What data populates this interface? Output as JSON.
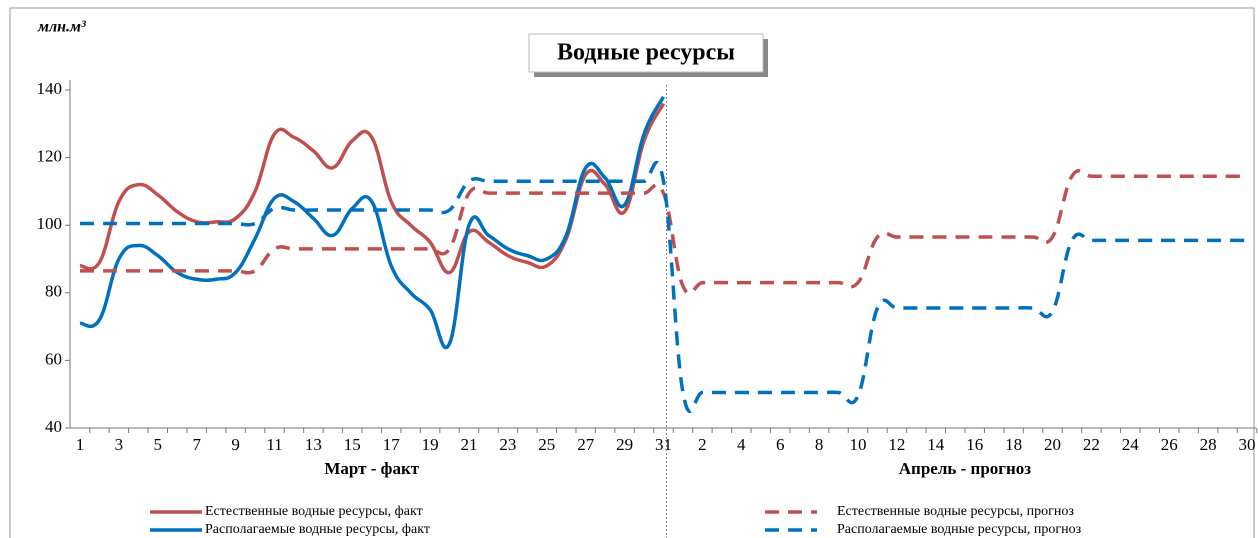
{
  "chart_data": {
    "type": "line",
    "title": "Водные ресурсы",
    "y_label": "млн.м³",
    "group_labels": [
      "Март - факт",
      "Апрель - прогноз"
    ],
    "categories": [
      "1",
      null,
      "3",
      null,
      "5",
      null,
      "7",
      null,
      "9",
      null,
      "11",
      null,
      "13",
      null,
      "15",
      null,
      "17",
      null,
      "19",
      null,
      "21",
      null,
      "23",
      null,
      "25",
      null,
      "27",
      null,
      "29",
      null,
      "31",
      null,
      "2",
      null,
      "4",
      null,
      "6",
      null,
      "8",
      null,
      "10",
      null,
      "12",
      null,
      "14",
      null,
      "16",
      null,
      "18",
      null,
      "20",
      null,
      "22",
      null,
      "24",
      null,
      "26",
      null,
      "28",
      null,
      "30"
    ],
    "series": [
      {
        "name": "Естественные водные ресурсы, факт",
        "color": "#c0504d",
        "dashed": false,
        "values": [
          88,
          89,
          107,
          112,
          109,
          104,
          101,
          101,
          102,
          110,
          127,
          126,
          122,
          117,
          125,
          126,
          107,
          100,
          95,
          86,
          98,
          95,
          91,
          89,
          88,
          96,
          115,
          112,
          104,
          125,
          136,
          null,
          null,
          null,
          null,
          null,
          null,
          null,
          null,
          null,
          null,
          null,
          null,
          null,
          null,
          null,
          null,
          null,
          null,
          null,
          null,
          null,
          null,
          null,
          null,
          null,
          null,
          null,
          null,
          null,
          null
        ]
      },
      {
        "name": "Располагаемые водные ресурсы, факт",
        "color": "#0070c0",
        "dashed": false,
        "values": [
          71,
          72,
          90,
          94,
          91,
          86,
          84,
          84,
          86,
          96,
          108,
          107,
          102,
          97,
          105,
          107,
          88,
          80,
          75,
          65,
          100,
          97,
          93,
          91,
          90,
          97,
          117,
          114,
          106,
          127,
          138,
          null,
          null,
          null,
          null,
          null,
          null,
          null,
          null,
          null,
          null,
          null,
          null,
          null,
          null,
          null,
          null,
          null,
          null,
          null,
          null,
          null,
          null,
          null,
          null,
          null,
          null,
          null,
          null,
          null,
          null
        ]
      },
      {
        "name": "Естественные водные ресурсы, прогноз",
        "color": "#c0504d",
        "dashed": true,
        "values": [
          86.5,
          86.5,
          86.5,
          86.5,
          86.5,
          86.5,
          86.5,
          86.5,
          86.5,
          86.5,
          93,
          93,
          93,
          93,
          93,
          93,
          93,
          93,
          93,
          93,
          109.5,
          109.5,
          109.5,
          109.5,
          109.5,
          109.5,
          109.5,
          109.5,
          109.5,
          109.5,
          109.5,
          82,
          83,
          83,
          83,
          83,
          83,
          83,
          83,
          83,
          83,
          96.5,
          96.5,
          96.5,
          96.5,
          96.5,
          96.5,
          96.5,
          96.5,
          96.5,
          96.5,
          114.5,
          114.5,
          114.5,
          114.5,
          114.5,
          114.5,
          114.5,
          114.5,
          114.5,
          114.5
        ]
      },
      {
        "name": "Располагаемые водные ресурсы, прогноз",
        "color": "#0070c0",
        "dashed": true,
        "values": [
          100.5,
          100.5,
          100.5,
          100.5,
          100.5,
          100.5,
          100.5,
          100.5,
          100.5,
          100.5,
          105,
          104.5,
          104.5,
          104.5,
          104.5,
          104.5,
          104.5,
          104.5,
          104.5,
          104.5,
          113,
          113,
          113,
          113,
          113,
          113,
          113,
          113,
          113,
          113,
          113,
          50.5,
          50.5,
          50.5,
          50.5,
          50.5,
          50.5,
          50.5,
          50.5,
          50.5,
          49.5,
          75.5,
          75.5,
          75.5,
          75.5,
          75.5,
          75.5,
          75.5,
          75.5,
          75.5,
          74.5,
          95.5,
          95.5,
          95.5,
          95.5,
          95.5,
          95.5,
          95.5,
          95.5,
          95.5,
          95.5
        ]
      }
    ],
    "ylim": [
      40,
      140
    ],
    "yticks": [
      40,
      60,
      80,
      100,
      120,
      140
    ],
    "grid": false
  }
}
